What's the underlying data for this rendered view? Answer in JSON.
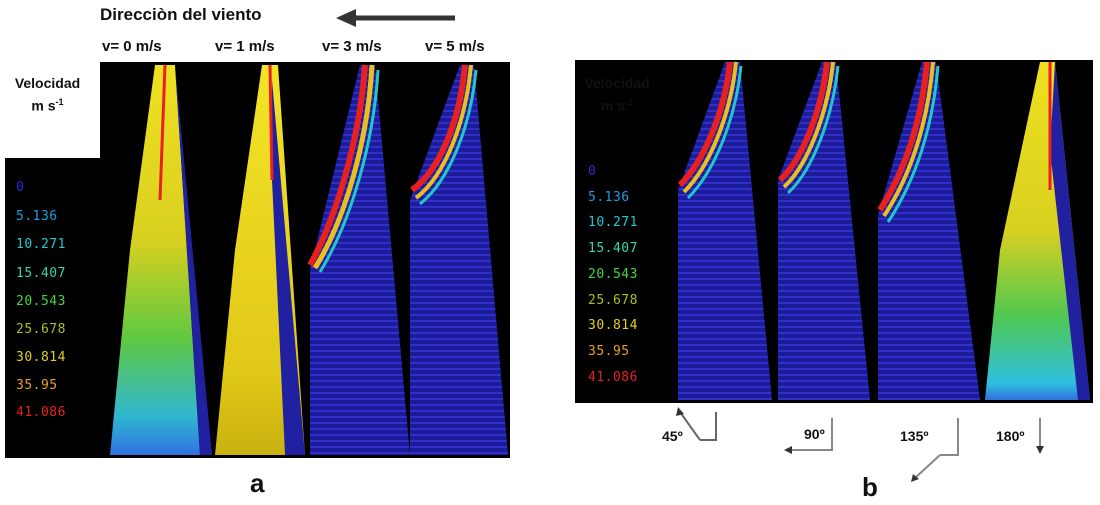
{
  "panel_a": {
    "header": "Direcciòn del viento",
    "velocity_labels": [
      "v= 0 m/s",
      "v= 1 m/s",
      "v= 3 m/s",
      "v= 5 m/s"
    ],
    "legend_title_line1": "Velocidad",
    "legend_title_line2": "m s",
    "legend_title_sup": "-1",
    "label": "a"
  },
  "panel_b": {
    "legend_title_line1": "Velocidad",
    "legend_title_line2": "m s",
    "legend_title_sup": "-1",
    "angles": [
      "45º",
      "90º",
      "135º",
      "180º"
    ],
    "label": "b"
  },
  "legend": {
    "values": [
      "0",
      "5.136",
      "10.271",
      "15.407",
      "20.543",
      "25.678",
      "30.814",
      "35.95",
      "41.086"
    ],
    "colors": [
      "#2a2ad8",
      "#1aa0e0",
      "#20c8d8",
      "#30d8b0",
      "#40d840",
      "#a8c020",
      "#e0d020",
      "#e8a020",
      "#e82020"
    ]
  }
}
